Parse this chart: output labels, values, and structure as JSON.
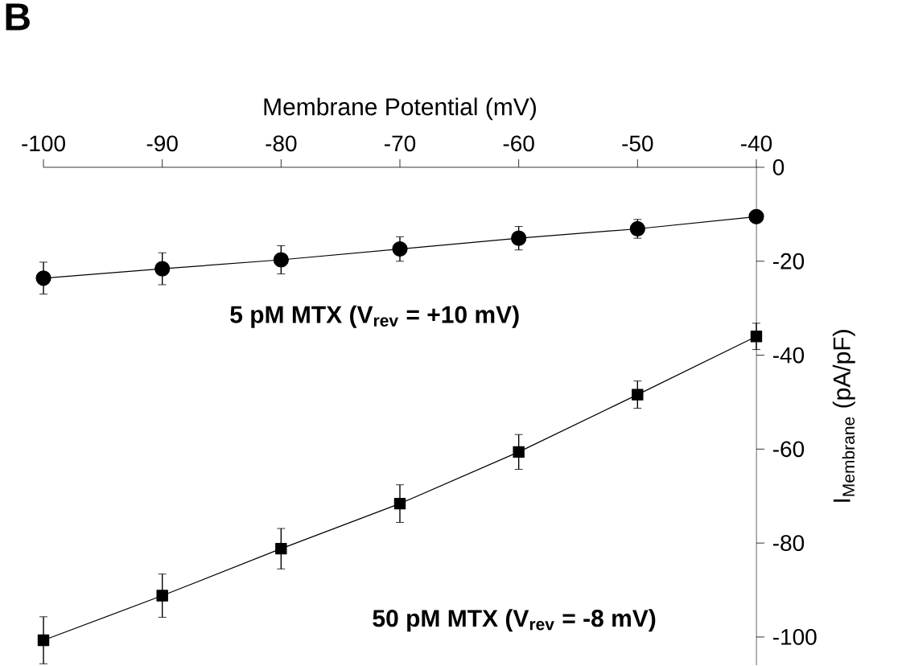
{
  "chart_data": {
    "type": "line",
    "title": "B",
    "xlabel": "Membrane Potential (mV)",
    "ylabel": "I$_{Membrane}$ (pA/pF)",
    "x": [
      -100,
      -90,
      -80,
      -70,
      -60,
      -50,
      -40
    ],
    "series": [
      {
        "color": "#000000",
        "marker": "circle",
        "values": [
          -23.6,
          -21.6,
          -19.7,
          -17.4,
          -15.1,
          -13.1,
          -10.5
        ],
        "errors": [
          3.4,
          3.4,
          3,
          2.6,
          2.5,
          2,
          null
        ]
      },
      {
        "color": "#000000",
        "marker": "square",
        "values": [
          -100.7,
          -91.2,
          -81.2,
          -71.6,
          -60.6,
          -48.4,
          -36
        ],
        "errors": [
          5,
          4.6,
          4.3,
          4,
          3.7,
          2.9,
          2.8
        ]
      }
    ],
    "xlim": [
      -100,
      -40
    ],
    "xticks": [
      -100,
      -90,
      -80,
      -70,
      -60,
      -50,
      -40
    ],
    "ylim": [
      -106,
      0
    ],
    "yticks": [
      0,
      -20,
      -40,
      -60,
      -80,
      -100
    ],
    "line_style": "solid",
    "annotations": [
      "5 pM MTX (V$_{rev}$ = +10 mV)",
      "50 pM MTX (V$_{rev}$ = -8 mV)"
    ]
  }
}
